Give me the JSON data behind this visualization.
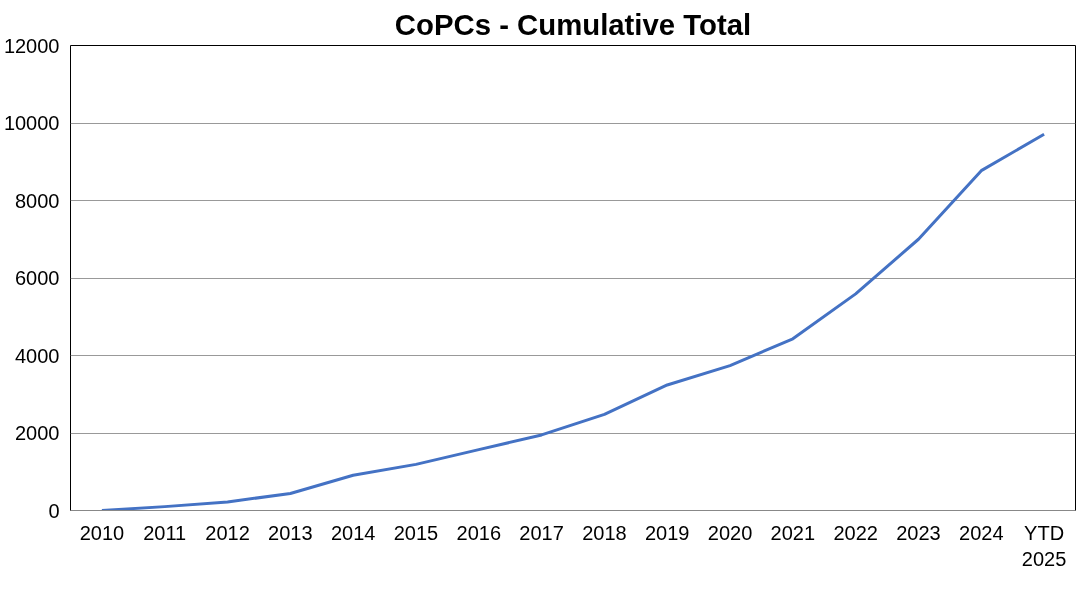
{
  "chart_data": {
    "type": "line",
    "title": "CoPCs - Cumulative Total",
    "categories": [
      "2010",
      "2011",
      "2012",
      "2013",
      "2014",
      "2015",
      "2016",
      "2017",
      "2018",
      "2019",
      "2020",
      "2021",
      "2022",
      "2023",
      "2024",
      "YTD 2025"
    ],
    "series": [
      {
        "color": "#4472c4",
        "values": [
          0,
          100,
          220,
          440,
          910,
          1190,
          1570,
          1950,
          2480,
          3240,
          3740,
          4430,
          5590,
          7000,
          8770,
          9710
        ]
      }
    ],
    "ylim": [
      0,
      12000
    ],
    "yticks": [
      0,
      2000,
      4000,
      6000,
      8000,
      10000,
      12000
    ],
    "grid": "y",
    "marker": "none",
    "line_style": "solid"
  }
}
